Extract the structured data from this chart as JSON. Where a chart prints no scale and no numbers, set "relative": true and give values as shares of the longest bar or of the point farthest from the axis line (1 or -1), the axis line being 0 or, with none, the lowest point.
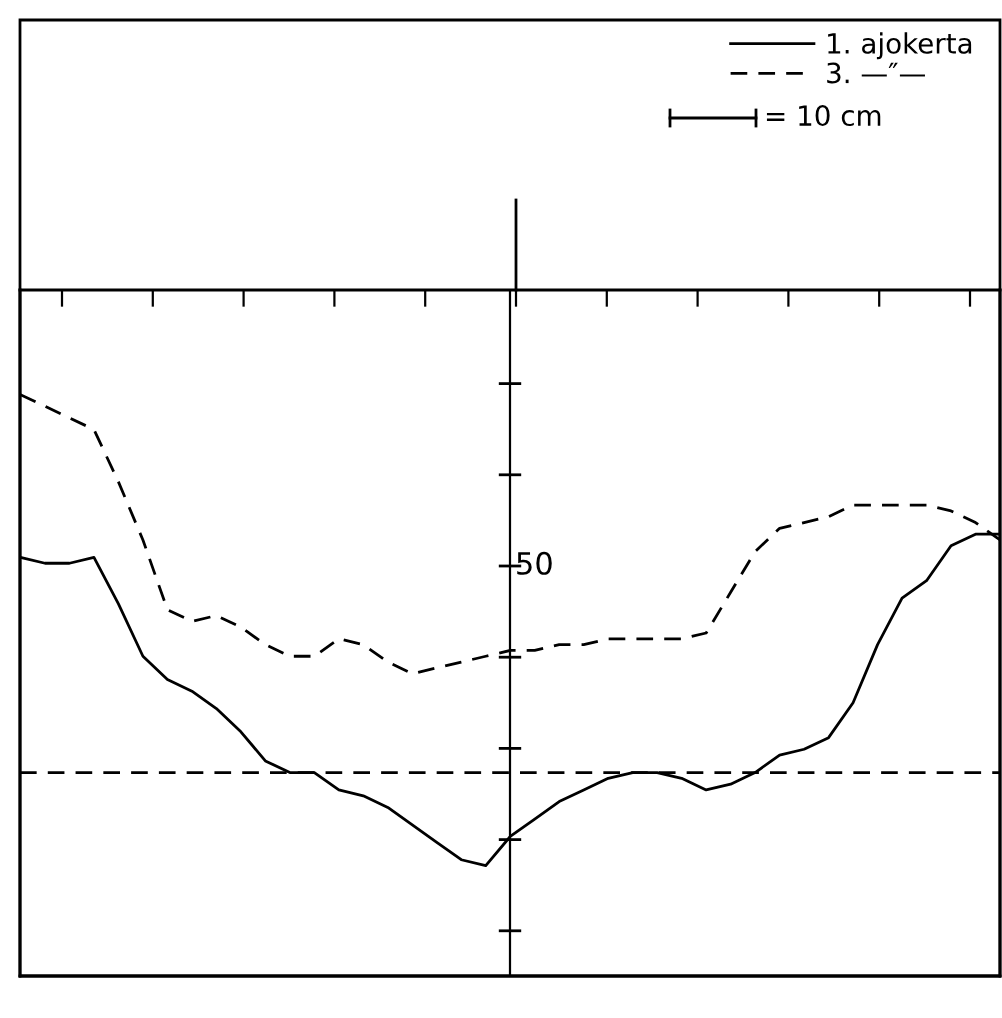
{
  "chart_data": {
    "type": "line",
    "relative": true,
    "legend": "top right",
    "marker": "none",
    "categories": [
      null,
      null,
      null,
      null,
      null,
      null,
      null,
      null,
      null,
      null,
      null,
      null,
      null,
      null,
      null,
      null,
      null,
      null,
      null,
      null,
      null,
      null,
      null,
      null,
      null,
      null,
      null,
      null,
      null,
      null,
      null,
      null,
      null,
      null,
      null,
      null,
      null,
      null,
      null,
      null,
      null
    ],
    "series": [
      {
        "name": "1. ajokerta",
        "color": "#000000",
        "line_style": "solid",
        "values": [
          0.72,
          0.71,
          0.71,
          0.72,
          0.64,
          0.55,
          0.51,
          0.49,
          0.46,
          0.42,
          0.37,
          0.35,
          0.35,
          0.32,
          0.31,
          0.29,
          0.26,
          0.23,
          0.2,
          0.19,
          0.24,
          0.27,
          0.3,
          0.32,
          0.34,
          0.35,
          0.35,
          0.34,
          0.32,
          0.33,
          0.35,
          0.38,
          0.39,
          0.41,
          0.47,
          0.57,
          0.65,
          0.68,
          0.74,
          0.76,
          0.76
        ]
      },
      {
        "name": "3. —″—",
        "color": "#000000",
        "line_style": "dashed",
        "values": [
          1.0,
          0.98,
          0.96,
          0.94,
          0.85,
          0.75,
          0.63,
          0.61,
          0.62,
          0.6,
          0.57,
          0.55,
          0.55,
          0.58,
          0.57,
          0.54,
          0.52,
          0.53,
          0.54,
          0.55,
          0.56,
          0.56,
          0.57,
          0.57,
          0.58,
          0.58,
          0.58,
          0.58,
          0.59,
          0.66,
          0.73,
          0.77,
          0.78,
          0.79,
          0.81,
          0.81,
          0.81,
          0.81,
          0.8,
          0.78,
          0.75
        ]
      }
    ],
    "ref_lines": [
      {
        "axis": "y",
        "value": 0.35,
        "color": "#000000",
        "line_style": "dashed"
      }
    ],
    "annotations": [
      "50",
      "= 10 cm"
    ]
  }
}
